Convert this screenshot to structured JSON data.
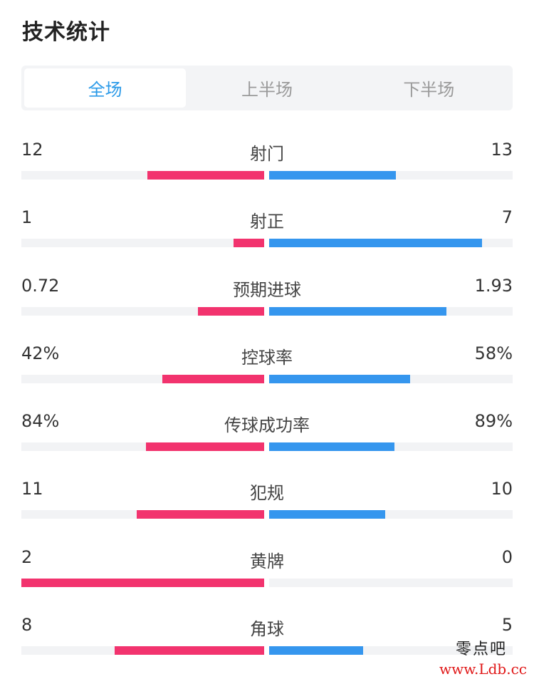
{
  "title": "技术统计",
  "tabs": [
    {
      "label": "全场",
      "active": true
    },
    {
      "label": "上半场",
      "active": false
    },
    {
      "label": "下半场",
      "active": false
    }
  ],
  "colors": {
    "home": "#f2336e",
    "away": "#3596ee",
    "track": "#f2f3f5",
    "active_tab": "#2b9ae8"
  },
  "stats": [
    {
      "label": "射门",
      "home": "12",
      "away": "13",
      "home_frac": 0.48,
      "away_frac": 0.52
    },
    {
      "label": "射正",
      "home": "1",
      "away": "7",
      "home_frac": 0.125,
      "away_frac": 0.875
    },
    {
      "label": "预期进球",
      "home": "0.72",
      "away": "1.93",
      "home_frac": 0.272,
      "away_frac": 0.728
    },
    {
      "label": "控球率",
      "home": "42%",
      "away": "58%",
      "home_frac": 0.42,
      "away_frac": 0.58
    },
    {
      "label": "传球成功率",
      "home": "84%",
      "away": "89%",
      "home_frac": 0.486,
      "away_frac": 0.514
    },
    {
      "label": "犯规",
      "home": "11",
      "away": "10",
      "home_frac": 0.524,
      "away_frac": 0.476
    },
    {
      "label": "黄牌",
      "home": "2",
      "away": "0",
      "home_frac": 1.0,
      "away_frac": 0.0
    },
    {
      "label": "角球",
      "home": "8",
      "away": "5",
      "home_frac": 0.615,
      "away_frac": 0.385
    }
  ],
  "watermark": {
    "name": "零点吧",
    "url": "www.Ldb.cc"
  }
}
